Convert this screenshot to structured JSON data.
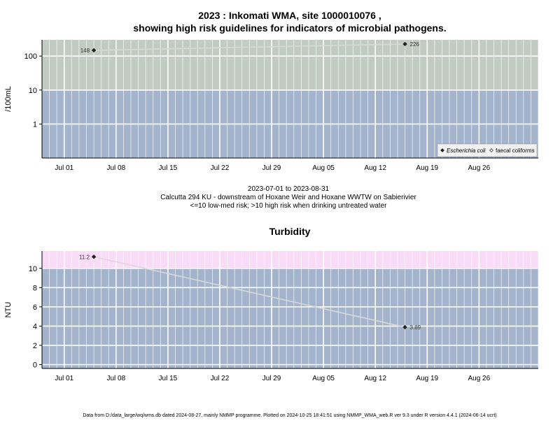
{
  "header": {
    "title_line1": "2023 : Inkomati WMA, site 1000010076 ,",
    "title_line2": "showing high risk guidelines for indicators of microbial pathogens."
  },
  "subtitle": {
    "date_range": "2023-07-01 to 2023-08-31",
    "site_description": "Calcutta 294 KU - downstream of Hoxane Weir and Hoxane WWTW on Sabierivier",
    "risk_note": "<=10 low-med risk; >10 high risk when drinking untreated water"
  },
  "footer": {
    "text": "Data from D:/data_large/wq/wms.db dated 2024-08-27, mainly NMMP programme. Plotted on 2024-10-25 18:41:51 using NMMP_WMA_web.R ver 9.3 under R version 4.4.1 (2024-06-14 ucrt)"
  },
  "colors": {
    "low_band": "#a3b4cc",
    "high_band_micro": "#c2cbc1",
    "high_band_turb": "#f9dbf7",
    "line": "#d9d9d9",
    "point": "#222222"
  },
  "chart_data": [
    {
      "type": "line",
      "title": "",
      "ylabel": "/100mL",
      "xlabel": "",
      "y_scale": "log",
      "ylim": [
        0.1,
        300
      ],
      "xlim": [
        "2023-06-28",
        "2023-09-03"
      ],
      "y_ticks": [
        1,
        10,
        100
      ],
      "y_tick_labels": [
        "1",
        "10",
        "100"
      ],
      "x_ticks": [
        "2023-07-01",
        "2023-07-08",
        "2023-07-15",
        "2023-07-22",
        "2023-07-29",
        "2023-08-05",
        "2023-08-12",
        "2023-08-19",
        "2023-08-26"
      ],
      "x_tick_labels": [
        "Jul 01",
        "Jul 08",
        "Jul 15",
        "Jul 22",
        "Jul 29",
        "Aug 05",
        "Aug 12",
        "Aug 19",
        "Aug 26"
      ],
      "threshold": 10,
      "grid": true,
      "legend_position": "bottom-right",
      "legend": [
        {
          "label": "Escherichia coli",
          "marker": "filled-diamond",
          "italic": true
        },
        {
          "label": "faecal coliforms",
          "marker": "open-diamond",
          "italic": false
        }
      ],
      "series": [
        {
          "name": "Escherichia coli",
          "x": [
            "2023-07-05",
            "2023-08-16"
          ],
          "y": [
            148,
            226
          ],
          "labels": [
            "148",
            "226"
          ]
        }
      ]
    },
    {
      "type": "line",
      "title": "Turbidity",
      "ylabel": "NTU",
      "xlabel": "",
      "y_scale": "linear",
      "ylim": [
        -0.4,
        11.8
      ],
      "xlim": [
        "2023-06-28",
        "2023-09-03"
      ],
      "y_ticks": [
        0,
        2,
        4,
        6,
        8,
        10
      ],
      "y_tick_labels": [
        "0",
        "2",
        "4",
        "6",
        "8",
        "10"
      ],
      "x_ticks": [
        "2023-07-01",
        "2023-07-08",
        "2023-07-15",
        "2023-07-22",
        "2023-07-29",
        "2023-08-05",
        "2023-08-12",
        "2023-08-19",
        "2023-08-26"
      ],
      "x_tick_labels": [
        "Jul 01",
        "Jul 08",
        "Jul 15",
        "Jul 22",
        "Jul 29",
        "Aug 05",
        "Aug 12",
        "Aug 19",
        "Aug 26"
      ],
      "threshold": 10,
      "grid": true,
      "series": [
        {
          "name": "",
          "x": [
            "2023-07-05",
            "2023-08-16"
          ],
          "y": [
            11.2,
            3.89
          ],
          "labels": [
            "11.2",
            "3.89"
          ]
        }
      ]
    }
  ]
}
